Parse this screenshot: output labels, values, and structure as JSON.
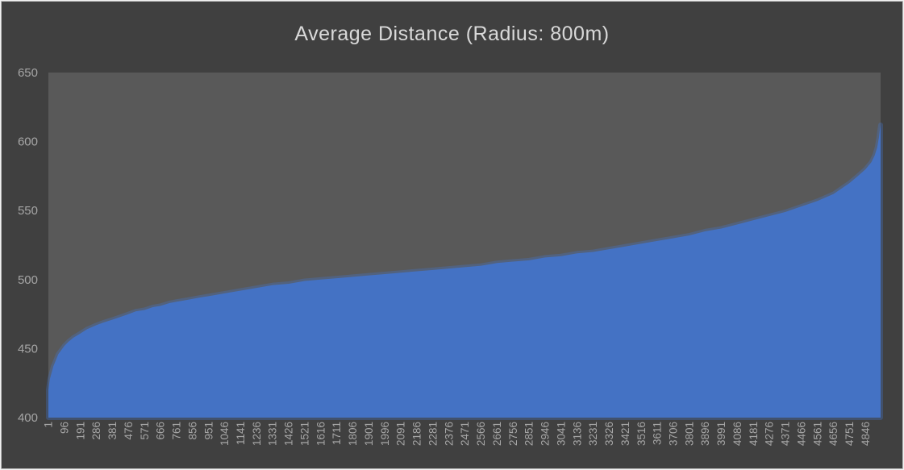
{
  "chart_data": {
    "type": "area",
    "title": "Average Distance (Radius: 800m)",
    "xlabel": "",
    "ylabel": "",
    "ylim": [
      400,
      650
    ],
    "yticks": [
      400,
      450,
      500,
      550,
      600,
      650
    ],
    "x_range": [
      1,
      4935
    ],
    "x_tick_labels": [
      "1",
      "96",
      "191",
      "286",
      "381",
      "476",
      "571",
      "666",
      "761",
      "856",
      "951",
      "1046",
      "1141",
      "1236",
      "1331",
      "1426",
      "1521",
      "1616",
      "1711",
      "1806",
      "1901",
      "1996",
      "2091",
      "2186",
      "2281",
      "2376",
      "2471",
      "2566",
      "2661",
      "2756",
      "2851",
      "2946",
      "3041",
      "3136",
      "3231",
      "3326",
      "3421",
      "3516",
      "3611",
      "3706",
      "3801",
      "3896",
      "3991",
      "4086",
      "4181",
      "4276",
      "4371",
      "4466",
      "4561",
      "4656",
      "4751",
      "4846"
    ],
    "grid": false,
    "legend": "none",
    "colors": {
      "series": "#4472c4",
      "plot_bg": "#595959",
      "chart_bg": "#404040",
      "text": "#d9d9d9",
      "tick": "#a6a6a6"
    },
    "series": [
      {
        "x": [
          1,
          10,
          30,
          60,
          96,
          120,
          150,
          191,
          230,
          286,
          330,
          381,
          430,
          476,
          520,
          571,
          620,
          666,
          720,
          761,
          810,
          856,
          900,
          951,
          1046,
          1141,
          1236,
          1331,
          1426,
          1521,
          1616,
          1711,
          1806,
          1901,
          1996,
          2091,
          2186,
          2281,
          2376,
          2471,
          2566,
          2661,
          2756,
          2851,
          2946,
          3041,
          3136,
          3231,
          3326,
          3421,
          3516,
          3611,
          3706,
          3801,
          3896,
          3991,
          4086,
          4181,
          4276,
          4371,
          4466,
          4561,
          4656,
          4751,
          4800,
          4846,
          4880,
          4900,
          4915,
          4925,
          4930,
          4935
        ],
        "y": [
          420,
          428,
          437,
          446,
          452,
          455,
          458,
          461,
          464,
          467,
          469,
          471,
          473,
          475,
          477,
          478,
          480,
          481,
          483,
          484,
          485,
          486,
          487,
          488,
          490,
          492,
          494,
          496,
          497,
          499,
          500,
          501,
          502,
          503,
          504,
          505,
          506,
          507,
          508,
          509,
          510,
          512,
          513,
          514,
          516,
          517,
          519,
          520,
          522,
          524,
          526,
          528,
          530,
          532,
          535,
          537,
          540,
          543,
          546,
          549,
          553,
          557,
          562,
          570,
          575,
          580,
          585,
          590,
          596,
          603,
          608,
          612
        ]
      }
    ]
  }
}
